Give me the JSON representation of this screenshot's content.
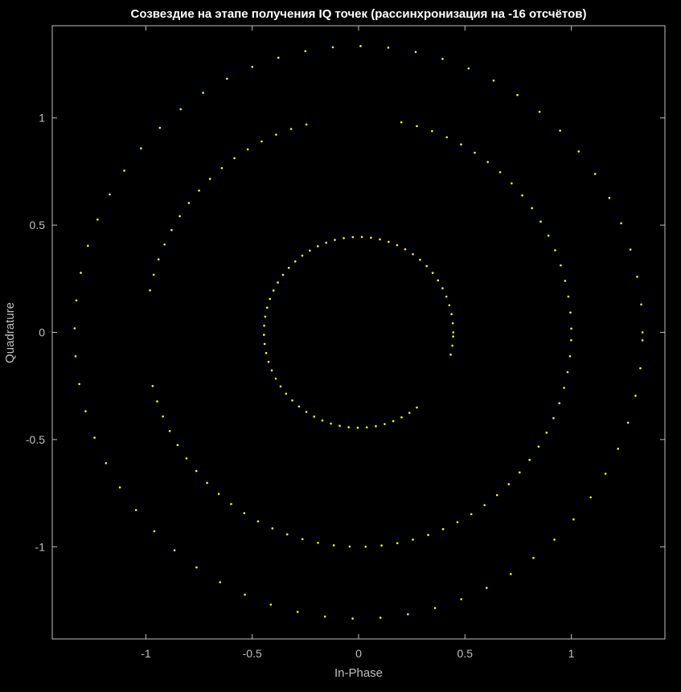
{
  "chart_data": {
    "type": "scatter",
    "title": "Созвездие на этапе получения IQ точек (рассинхронизация на -16 отсчётов)",
    "xlabel": "In-Phase",
    "ylabel": "Quadrature",
    "xlim": [
      -1.44,
      1.44
    ],
    "ylim": [
      -1.43,
      1.43
    ],
    "xticks": [
      -1,
      -0.5,
      0,
      0.5,
      1
    ],
    "yticks": [
      -1,
      -0.5,
      0,
      0.5,
      1
    ],
    "xtick_labels": [
      "-1",
      "-0.5",
      "0",
      "0.5",
      "1"
    ],
    "ytick_labels": [
      "-1",
      "-0.5",
      "0",
      "0.5",
      "1"
    ],
    "grid": false,
    "background": "#000000",
    "axis_color": "#bfbfbf",
    "marker_color": "#ffff00",
    "series": [
      {
        "rings": [
          {
            "radius": 0.445,
            "start_deg": 0,
            "step_deg": 5.5,
            "count": 66,
            "skip": [
              57,
              58,
              59,
              60,
              61,
              62
            ]
          },
          {
            "radius": 1.0,
            "start_deg": 1,
            "step_deg": 4.3,
            "count": 84,
            "skip": [
              19,
              20,
              21,
              22,
              23,
              40,
              41,
              42,
              43,
              44
            ]
          },
          {
            "radius": 1.335,
            "start_deg": 0,
            "step_deg": 5.6,
            "count": 65,
            "skip": []
          }
        ]
      }
    ]
  }
}
